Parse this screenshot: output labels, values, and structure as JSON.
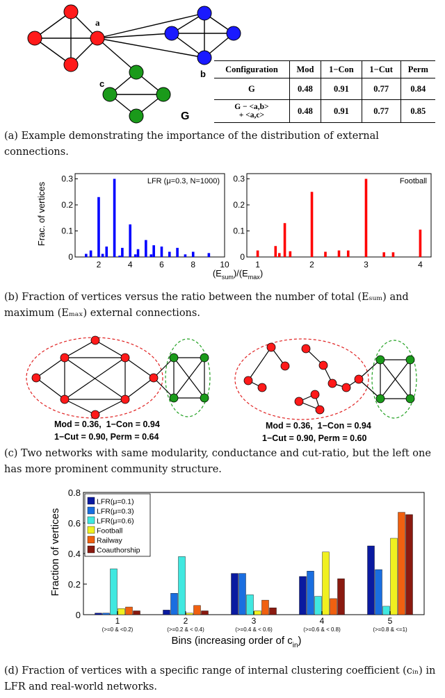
{
  "panel_a": {
    "node_labels": {
      "a": "a",
      "b": "b",
      "c": "c",
      "G": "G"
    },
    "colors": {
      "red": "#ff1a1a",
      "blue": "#1a1aff",
      "green": "#1a9a1a"
    },
    "table": {
      "headers": [
        "Configuration",
        "Mod",
        "1−Con",
        "1−Cut",
        "Perm"
      ],
      "rows": [
        [
          "G",
          "0.48",
          "0.91",
          "0.77",
          "0.84"
        ],
        [
          "G − <a,b>\n+ <a,c>",
          "0.48",
          "0.91",
          "0.77",
          "0.85"
        ]
      ]
    },
    "caption": "(a) Example demonstrating the importance of the distribution of external connections."
  },
  "panel_b": {
    "caption": "(b) Fraction of vertices versus the ratio between the number of total (Eₛᵤₘ) and maximum (Eₘₐₓ) external connections.",
    "ylabel": "Frac. of vertices",
    "xlabel": "(E_sum)/(E_max)",
    "xlabel_parts": {
      "open": "(E",
      "sum": "sum",
      "mid": ")/(E",
      "max": "max",
      "close": ")"
    }
  },
  "panel_c": {
    "left_text": [
      "Mod = 0.36,  1−Con = 0.94",
      "1−Cut = 0.90, Perm = 0.64"
    ],
    "right_text": [
      "Mod = 0.36,  1−Con = 0.94",
      "1−Cut = 0.90, Perm = 0.60"
    ],
    "caption": "(c) Two networks with same modularity, conductance and cut-ratio, but the left one has more prominent community structure."
  },
  "panel_d": {
    "caption": "(d) Fraction of vertices with a specific range of internal clustering coefficient (cᵢₙ) in LFR and real-world networks.",
    "xlabel": "Bins (increasing order of c",
    "xlabel_sub": "in",
    "xlabel_close": ")",
    "ylabel": "Fraction of vertices"
  },
  "chart_data": [
    {
      "type": "bar",
      "panel": "b-left",
      "legend_text": "LFR (μ=0.3, N=1000)",
      "color": "#0000ff",
      "xlim": [
        0.5,
        10
      ],
      "ylim": [
        0,
        0.32
      ],
      "xticks": [
        2,
        4,
        6,
        8,
        10
      ],
      "yticks": [
        0,
        0.1,
        0.2,
        0.3
      ],
      "ytick_labels": [
        "0",
        "0.1",
        "0.2",
        "0.3"
      ],
      "x": [
        1.2,
        1.5,
        2.0,
        2.25,
        2.5,
        3.0,
        3.33,
        3.5,
        4.0,
        4.33,
        4.5,
        5.0,
        5.33,
        5.5,
        6.0,
        6.5,
        7.0,
        7.5,
        8.0,
        9.0
      ],
      "values": [
        0.012,
        0.025,
        0.23,
        0.012,
        0.04,
        0.3,
        0.005,
        0.035,
        0.125,
        0.01,
        0.03,
        0.065,
        0.01,
        0.045,
        0.04,
        0.02,
        0.035,
        0.01,
        0.02,
        0.015
      ]
    },
    {
      "type": "bar",
      "panel": "b-right",
      "legend_text": "Football",
      "color": "#ff0000",
      "xlim": [
        0.8,
        4.2
      ],
      "ylim": [
        0,
        0.32
      ],
      "xticks": [
        1,
        2,
        3,
        4
      ],
      "yticks": [
        0,
        0.1,
        0.2,
        0.3
      ],
      "ytick_labels": [
        "0",
        "0.1",
        "0.2",
        "0.3"
      ],
      "x": [
        1.0,
        1.33,
        1.4,
        1.5,
        1.6,
        2.0,
        2.25,
        2.5,
        2.67,
        3.0,
        3.33,
        3.5,
        4.0
      ],
      "values": [
        0.025,
        0.042,
        0.015,
        0.13,
        0.022,
        0.25,
        0.02,
        0.025,
        0.025,
        0.3,
        0.018,
        0.018,
        0.105
      ]
    },
    {
      "type": "bar",
      "panel": "d",
      "categories": [
        "1",
        "2",
        "3",
        "4",
        "5"
      ],
      "category_sublabels": [
        "(>=0 & <0.2)",
        "(>=0.2 & < 0.4)",
        "(>=0.4 & < 0.6)",
        "(>=0.6 & < 0.8)",
        "(>=0.8 & <=1)"
      ],
      "ylim": [
        0,
        0.8
      ],
      "yticks": [
        0,
        0.2,
        0.4,
        0.6,
        0.8
      ],
      "ytick_labels": [
        "0",
        "0.2",
        "0.4",
        "0.6",
        "0.8"
      ],
      "legend_position": "top-left",
      "series": [
        {
          "name": "LFR(μ=0.1)",
          "color": "#0a1aa0",
          "values": [
            0.01,
            0.03,
            0.27,
            0.25,
            0.45
          ]
        },
        {
          "name": "LFR(μ=0.3)",
          "color": "#1a6ee0",
          "values": [
            0.01,
            0.14,
            0.27,
            0.285,
            0.295
          ]
        },
        {
          "name": "LFR(μ=0.6)",
          "color": "#40e8e0",
          "values": [
            0.3,
            0.38,
            0.13,
            0.12,
            0.055
          ]
        },
        {
          "name": "Football",
          "color": "#f0f020",
          "values": [
            0.04,
            0.01,
            0.025,
            0.41,
            0.5
          ]
        },
        {
          "name": "Railway",
          "color": "#f06010",
          "values": [
            0.05,
            0.06,
            0.095,
            0.105,
            0.67
          ]
        },
        {
          "name": "Coauthorship",
          "color": "#8a1a10",
          "values": [
            0.025,
            0.025,
            0.045,
            0.235,
            0.655
          ]
        }
      ]
    }
  ]
}
